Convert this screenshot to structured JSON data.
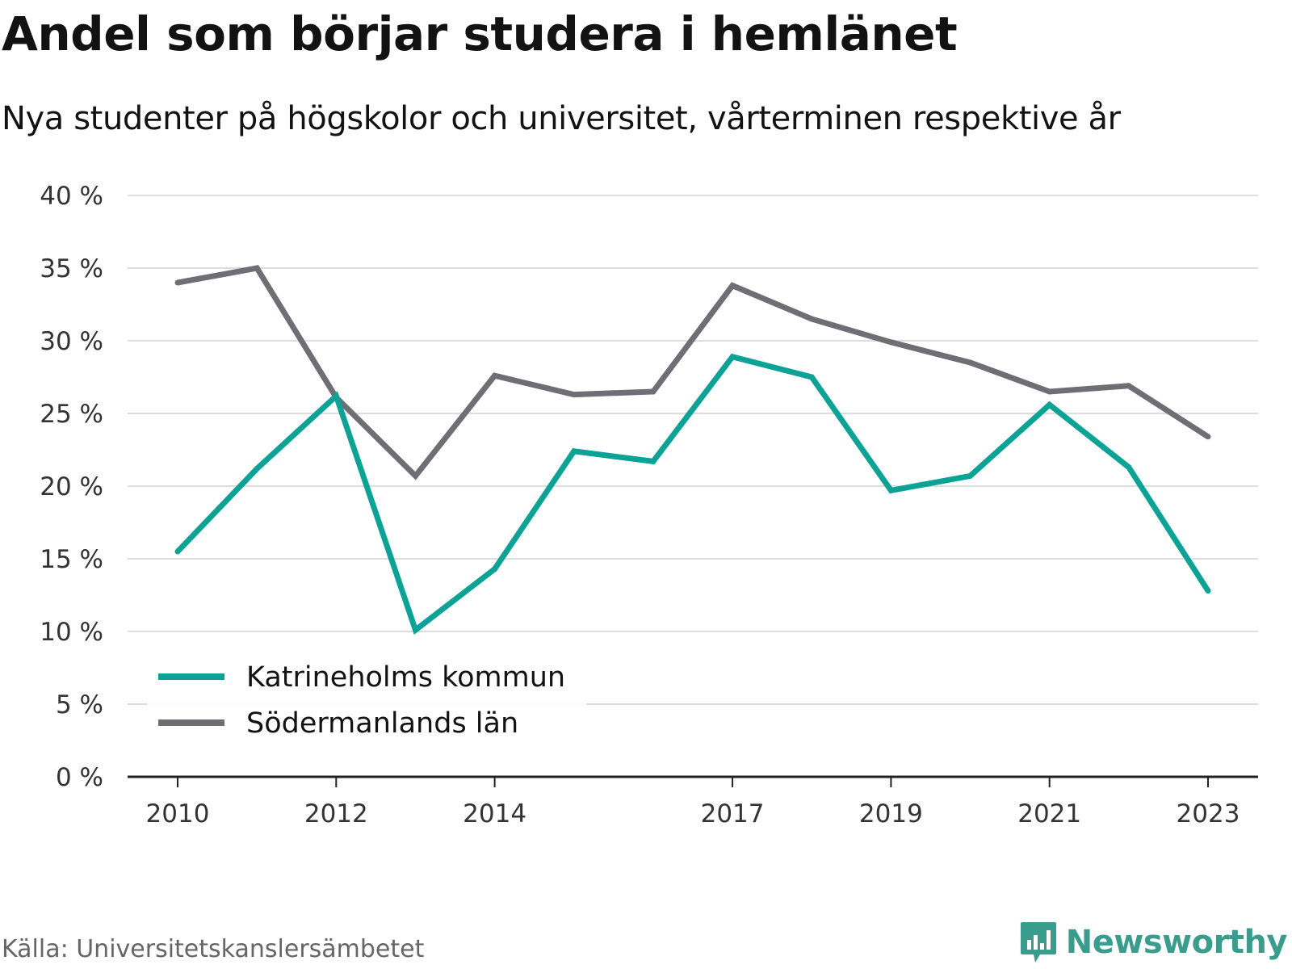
{
  "title": "Andel som börjar studera i hemlänet",
  "subtitle": "Nya studenter på högskolor och universitet, vårterminen respektive år",
  "source": "Källa: Universitetskanslersämbetet",
  "brand": "Newsworthy",
  "colors": {
    "katrineholm": "#0ca396",
    "sodermanland": "#6f6e75",
    "grid": "#dddddd",
    "axis": "#222222",
    "brand": "#3a9c8c"
  },
  "chart_data": {
    "type": "line",
    "title": "Andel som börjar studera i hemlänet",
    "subtitle": "Nya studenter på högskolor och universitet, vårterminen respektive år",
    "x": [
      2010,
      2011,
      2012,
      2013,
      2014,
      2015,
      2016,
      2017,
      2018,
      2019,
      2020,
      2021,
      2022,
      2023
    ],
    "x_tick_labels": [
      "2010",
      "2012",
      "2014",
      "2017",
      "2019",
      "2021",
      "2023"
    ],
    "y_tick_labels": [
      "0 %",
      "5 %",
      "10 %",
      "15 %",
      "20 %",
      "25 %",
      "30 %",
      "35 %",
      "40 %"
    ],
    "y_ticks": [
      0,
      5,
      10,
      15,
      20,
      25,
      30,
      35,
      40
    ],
    "ylim": [
      0,
      40
    ],
    "y_unit": "%",
    "grid": true,
    "legend_position": "bottom-left",
    "series": [
      {
        "name": "Katrineholms kommun",
        "color": "#0ca396",
        "values": [
          15.5,
          21.2,
          26.2,
          10.1,
          14.3,
          22.4,
          21.7,
          28.9,
          27.5,
          19.7,
          20.7,
          25.6,
          21.3,
          12.8
        ]
      },
      {
        "name": "Södermanlands län",
        "color": "#6f6e75",
        "values": [
          34.0,
          35.0,
          26.1,
          20.7,
          27.6,
          26.3,
          26.5,
          33.8,
          31.5,
          29.9,
          28.5,
          26.5,
          26.9,
          23.4
        ]
      }
    ]
  }
}
